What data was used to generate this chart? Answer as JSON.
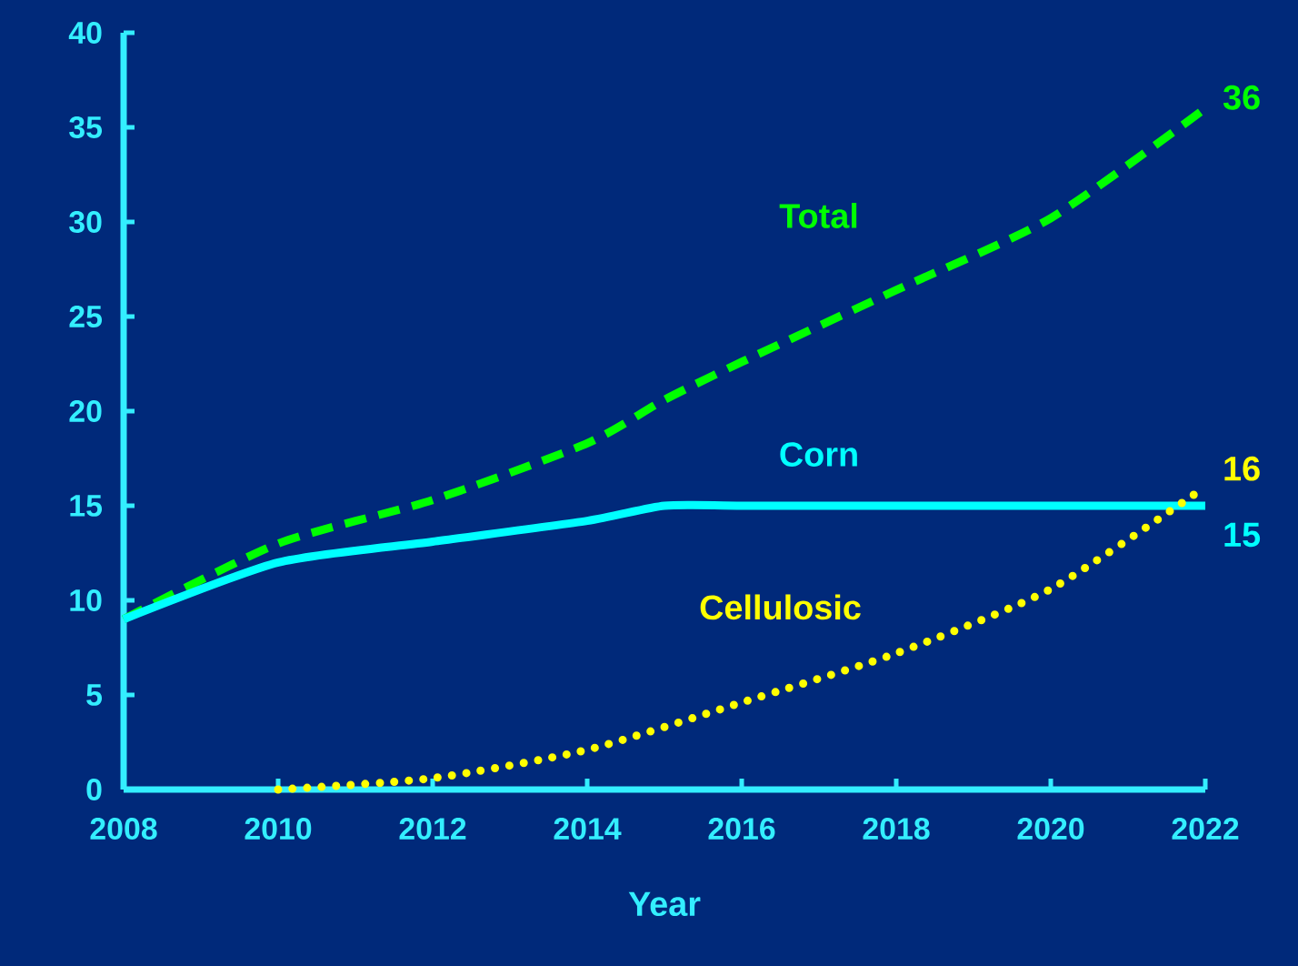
{
  "chart_data": {
    "type": "line",
    "xlabel": "Year",
    "xlim": [
      2008,
      2022
    ],
    "ylim": [
      0,
      40
    ],
    "xticks": [
      2008,
      2010,
      2012,
      2014,
      2016,
      2018,
      2020,
      2022
    ],
    "yticks": [
      0,
      5,
      10,
      15,
      20,
      25,
      30,
      35,
      40
    ],
    "series": [
      {
        "name": "Total",
        "color": "#00ff00",
        "line_style": "dashed",
        "x": [
          2008,
          2010,
          2012,
          2014,
          2015,
          2016,
          2018,
          2020,
          2022
        ],
        "values": [
          9,
          13,
          15.3,
          18.3,
          20.6,
          22.6,
          26.4,
          30.2,
          36
        ],
        "value_labels": [
          null,
          null,
          null,
          null,
          null,
          null,
          null,
          null,
          "36"
        ]
      },
      {
        "name": "Corn",
        "color": "#00ffff",
        "line_style": "solid",
        "x": [
          2008,
          2010,
          2012,
          2014,
          2015,
          2016,
          2018,
          2020,
          2022
        ],
        "values": [
          9,
          12,
          13.1,
          14.2,
          15,
          15,
          15,
          15,
          15
        ],
        "value_labels": [
          null,
          null,
          null,
          null,
          null,
          null,
          null,
          null,
          "15"
        ]
      },
      {
        "name": "Cellulosic",
        "color": "#ffff00",
        "line_style": "dotted",
        "x": [
          2010,
          2012,
          2014,
          2016,
          2018,
          2020,
          2022
        ],
        "values": [
          0,
          0.6,
          2.1,
          4.6,
          7.2,
          10.6,
          16
        ],
        "value_labels": [
          null,
          null,
          null,
          null,
          null,
          null,
          "16"
        ]
      }
    ]
  }
}
